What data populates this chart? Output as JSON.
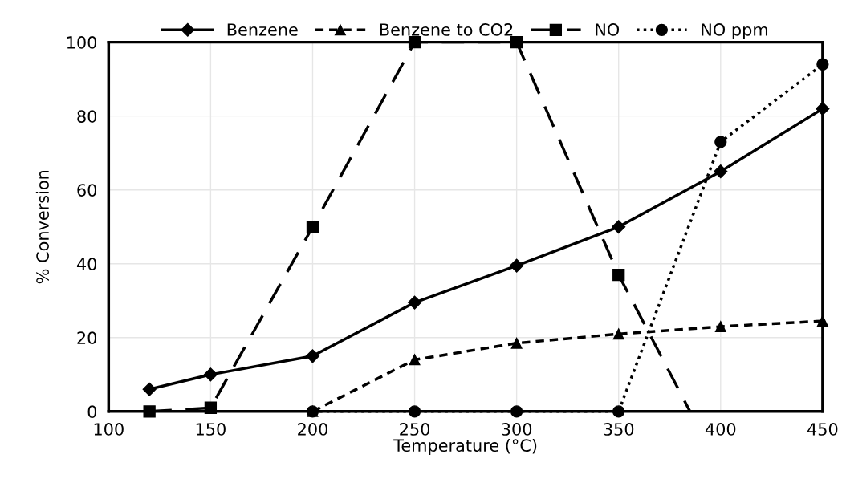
{
  "chart_data": {
    "type": "line",
    "xlabel": "Temperature (°C)",
    "ylabel": "% Conversion",
    "x": [
      120,
      150,
      200,
      250,
      300,
      350,
      400,
      450
    ],
    "series": [
      {
        "name": "Benzene",
        "color": "#000000",
        "marker": "diamond",
        "line_style": "solid",
        "values": [
          6,
          10,
          15,
          29.5,
          39.5,
          50,
          65,
          82
        ]
      },
      {
        "name": "Benzene to CO2",
        "color": "#000000",
        "marker": "triangle",
        "line_style": "dashed",
        "values": [
          null,
          null,
          0,
          14,
          18.5,
          21,
          23,
          24.5
        ]
      },
      {
        "name": "NO",
        "color": "#000000",
        "marker": "square",
        "line_style": "longdash",
        "x": [
          120,
          150,
          200,
          250,
          300,
          350,
          385
        ],
        "values": [
          0,
          1,
          50,
          100,
          100,
          37,
          0
        ]
      },
      {
        "name": "NO ppm",
        "color": "#000000",
        "marker": "circle",
        "line_style": "dotted",
        "values": [
          null,
          null,
          0,
          0,
          0,
          0,
          73,
          94
        ]
      }
    ],
    "xlim": [
      100,
      450
    ],
    "xticks": [
      100,
      150,
      200,
      250,
      300,
      350,
      400,
      450
    ],
    "ylim": [
      0,
      100
    ],
    "yticks": [
      0,
      20,
      40,
      60,
      80,
      100
    ],
    "grid": true,
    "legend": "top"
  }
}
